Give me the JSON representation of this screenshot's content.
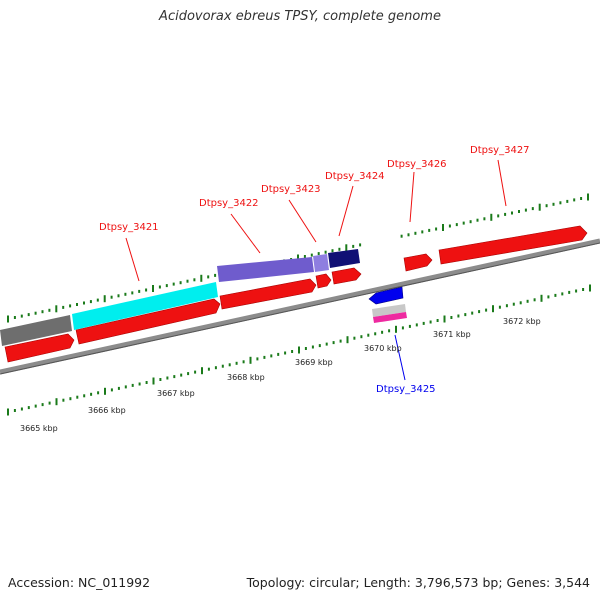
{
  "title": "Acidovorax ebreus TPSY, complete genome",
  "footer": {
    "accession": "Accession: NC_011992",
    "summary": "Topology: circular; Length: 3,796,573 bp; Genes: 3,544"
  },
  "colors": {
    "gene": "#ee1111",
    "gene_highlight": "#0000ee",
    "backbone": "#8c8c8c",
    "tick": "#1a7a1a",
    "cds_gray": "#6e6e6e",
    "cds_cyan": "#00eeee",
    "cds_purple": "#6f5ccd",
    "cds_navy": "#101075",
    "cds_silver": "#c8c8c8",
    "cds_pink": "#ee2aa0"
  },
  "scale_labels": [
    "3665 kbp",
    "3666 kbp",
    "3667 kbp",
    "3668 kbp",
    "3669 kbp",
    "3670 kbp",
    "3671 kbp",
    "3672 kbp"
  ],
  "gene_labels": [
    {
      "text": "Dtpsy_3421",
      "color": "#ee1111"
    },
    {
      "text": "Dtpsy_3422",
      "color": "#ee1111"
    },
    {
      "text": "Dtpsy_3423",
      "color": "#ee1111"
    },
    {
      "text": "Dtpsy_3424",
      "color": "#ee1111"
    },
    {
      "text": "Dtpsy_3425",
      "color": "#0000ee"
    },
    {
      "text": "Dtpsy_3426",
      "color": "#ee1111"
    },
    {
      "text": "Dtpsy_3427",
      "color": "#ee1111"
    }
  ]
}
